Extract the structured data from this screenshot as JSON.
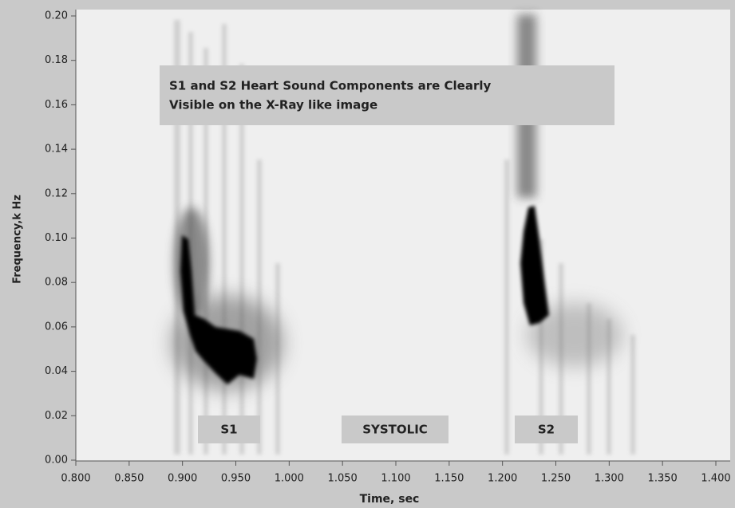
{
  "chart_data": {
    "type": "spectrogram",
    "x_label": "Time, sec",
    "y_label": "Frequency,k Hz",
    "xlim": [
      0.8,
      1.4
    ],
    "ylim": [
      0,
      0.2
    ],
    "xticks": [
      {
        "value": 0.8,
        "label": "0.800"
      },
      {
        "value": 0.85,
        "label": "0.850"
      },
      {
        "value": 0.9,
        "label": "0.900"
      },
      {
        "value": 0.95,
        "label": "0.950"
      },
      {
        "value": 1.0,
        "label": "1.000"
      },
      {
        "value": 1.05,
        "label": "1.050"
      },
      {
        "value": 1.1,
        "label": "1.100"
      },
      {
        "value": 1.15,
        "label": "1.150"
      },
      {
        "value": 1.2,
        "label": "1.200"
      },
      {
        "value": 1.25,
        "label": "1.250"
      },
      {
        "value": 1.3,
        "label": "1.300"
      },
      {
        "value": 1.35,
        "label": "1.350"
      },
      {
        "value": 1.4,
        "label": "1.400"
      }
    ],
    "yticks": [
      {
        "value": 0,
        "label": "0.00"
      },
      {
        "value": 0.02,
        "label": "0.02"
      },
      {
        "value": 0.04,
        "label": "0.04"
      },
      {
        "value": 0.06,
        "label": "0.06"
      },
      {
        "value": 0.08,
        "label": "0.08"
      },
      {
        "value": 0.1,
        "label": "0.10"
      },
      {
        "value": 0.12,
        "label": "0.12"
      },
      {
        "value": 0.14,
        "label": "0.14"
      },
      {
        "value": 0.16,
        "label": "0.16"
      },
      {
        "value": 0.18,
        "label": "0.18"
      },
      {
        "value": 0.2,
        "label": "0.20"
      }
    ],
    "note": [
      "S1 and S2 Heart Sound Components are Clearly",
      "Visible on the X-Ray like image"
    ],
    "labels": [
      "S1",
      "SYSTOLIC",
      "S2"
    ]
  }
}
